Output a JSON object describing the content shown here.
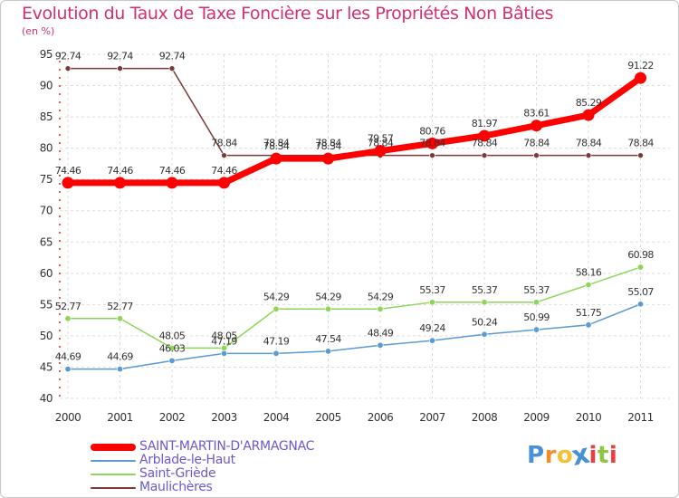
{
  "chart_data": {
    "type": "line",
    "title": "Evolution du Taux de Taxe Foncière sur les Propriétés Non Bâties",
    "unit_label": "(en %)",
    "xlabel": "",
    "ylabel": "",
    "ylim": [
      40,
      95
    ],
    "yticks": [
      40,
      45,
      50,
      55,
      60,
      65,
      70,
      75,
      80,
      85,
      90,
      95
    ],
    "categories": [
      "2000",
      "2001",
      "2002",
      "2003",
      "2004",
      "2005",
      "2006",
      "2007",
      "2008",
      "2009",
      "2010",
      "2011"
    ],
    "grid": true,
    "series": [
      {
        "name": "SAINT-MARTIN-D'ARMAGNAC",
        "color": "#ff0000",
        "values": [
          74.46,
          74.46,
          74.46,
          74.46,
          78.34,
          78.34,
          79.57,
          80.76,
          81.97,
          83.61,
          85.29,
          91.22
        ],
        "labels": [
          "74.46",
          "74.46",
          "74.46",
          "74.46",
          "78.34",
          "78.34",
          "79.57",
          "80.76",
          "81.97",
          "83.61",
          "85.29",
          "91.22"
        ]
      },
      {
        "name": "Arblade-le-Haut",
        "color": "#5b9bd5",
        "values": [
          44.69,
          44.69,
          46.03,
          47.19,
          47.19,
          47.54,
          48.49,
          49.24,
          50.24,
          50.99,
          51.75,
          55.07
        ],
        "labels": [
          "44.69",
          "44.69",
          "46.03",
          "47.19",
          "47.19",
          "47.54",
          "48.49",
          "49.24",
          "50.24",
          "50.99",
          "51.75",
          "55.07"
        ]
      },
      {
        "name": "Saint-Griède",
        "color": "#8ed65a",
        "values": [
          52.77,
          52.77,
          48.05,
          48.05,
          54.29,
          54.29,
          54.29,
          55.37,
          55.37,
          55.37,
          58.16,
          60.98
        ],
        "labels": [
          "52.77",
          "52.77",
          "48.05",
          "48.05",
          "54.29",
          "54.29",
          "54.29",
          "55.37",
          "55.37",
          "55.37",
          "58.16",
          "60.98"
        ]
      },
      {
        "name": "Maulichères",
        "color": "#7a3a3a",
        "values": [
          92.74,
          92.74,
          92.74,
          78.84,
          78.84,
          78.84,
          78.84,
          78.84,
          78.84,
          78.84,
          78.84,
          78.84
        ],
        "labels": [
          "92.74",
          "92.74",
          "92.74",
          "78.84",
          "78.84",
          "78.84",
          "78.84",
          "78.84",
          "78.84",
          "78.84",
          "78.84",
          "78.84"
        ]
      }
    ]
  },
  "logo": {
    "text": "Proxiti",
    "letters": [
      "P",
      "r",
      "o",
      "x",
      "i",
      "t",
      "i"
    ],
    "colors": [
      "#4a90d9",
      "#f28c28",
      "#f2c230",
      "#4a90d9",
      "#e84040",
      "#8ec63f",
      "#e84040"
    ]
  }
}
